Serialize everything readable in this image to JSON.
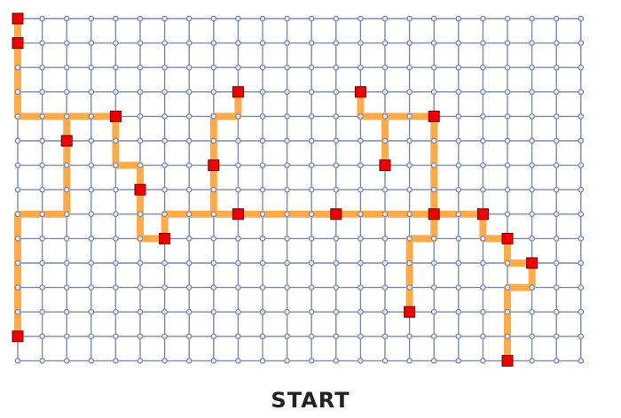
{
  "game": {
    "board": {
      "columns": 24,
      "rows": 15,
      "grid_color": "#7d8aa8",
      "node_fill": "#e6e9f2",
      "path_color": "#ffab4a",
      "marker_color": "#ee0000",
      "marker_border": "#6b0000"
    },
    "paths": [
      [
        [
          0,
          0
        ],
        [
          0,
          4
        ],
        [
          4,
          4
        ]
      ],
      [
        [
          2,
          4
        ],
        [
          2,
          8
        ],
        [
          0,
          8
        ],
        [
          0,
          13
        ]
      ],
      [
        [
          4,
          4
        ],
        [
          4,
          6
        ],
        [
          5,
          6
        ],
        [
          5,
          9
        ],
        [
          6,
          9
        ],
        [
          6,
          8
        ],
        [
          17,
          8
        ]
      ],
      [
        [
          9,
          3
        ],
        [
          9,
          4
        ],
        [
          8,
          4
        ],
        [
          8,
          8
        ]
      ],
      [
        [
          14,
          3
        ],
        [
          14,
          4
        ],
        [
          15,
          4
        ],
        [
          15,
          6
        ]
      ],
      [
        [
          15,
          4
        ],
        [
          17,
          4
        ],
        [
          17,
          9
        ],
        [
          16,
          9
        ],
        [
          16,
          12
        ]
      ],
      [
        [
          17,
          8
        ],
        [
          19,
          8
        ],
        [
          19,
          9
        ],
        [
          20,
          9
        ],
        [
          20,
          10
        ],
        [
          21,
          10
        ],
        [
          21,
          11
        ],
        [
          20,
          11
        ],
        [
          20,
          14
        ]
      ]
    ],
    "markers": [
      [
        0,
        0
      ],
      [
        0,
        1
      ],
      [
        0,
        13
      ],
      [
        2,
        5
      ],
      [
        4,
        4
      ],
      [
        5,
        7
      ],
      [
        6,
        9
      ],
      [
        8,
        6
      ],
      [
        9,
        3
      ],
      [
        9,
        8
      ],
      [
        13,
        8
      ],
      [
        14,
        3
      ],
      [
        15,
        6
      ],
      [
        17,
        4
      ],
      [
        17,
        8
      ],
      [
        16,
        12
      ],
      [
        19,
        8
      ],
      [
        20,
        9
      ],
      [
        21,
        10
      ],
      [
        20,
        14
      ]
    ]
  },
  "controls": {
    "start_label": "START"
  }
}
